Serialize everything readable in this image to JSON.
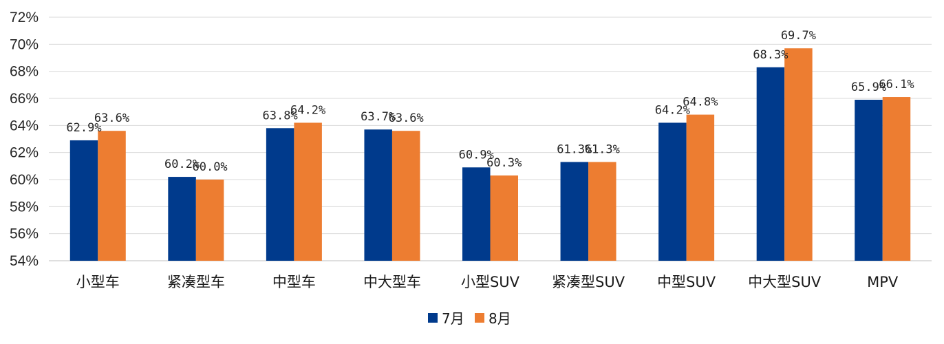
{
  "chart_data": {
    "type": "bar",
    "categories": [
      "小型车",
      "紧凑型车",
      "中型车",
      "中大型车",
      "小型SUV",
      "紧凑型SUV",
      "中型SUV",
      "中大型SUV",
      "MPV"
    ],
    "series": [
      {
        "name": "7月",
        "color": "#003a8c",
        "values": [
          62.9,
          60.2,
          63.8,
          63.7,
          60.9,
          61.3,
          64.2,
          68.3,
          65.9
        ],
        "labels": [
          "62.9%",
          "60.2%",
          "63.8%",
          "63.7%",
          "60.9%",
          "61.3%",
          "64.2%",
          "68.3%",
          "65.9%"
        ]
      },
      {
        "name": "8月",
        "color": "#ed7d31",
        "values": [
          63.6,
          60.0,
          64.2,
          63.6,
          60.3,
          61.3,
          64.8,
          69.7,
          66.1
        ],
        "labels": [
          "63.6%",
          "60.0%",
          "64.2%",
          "63.6%",
          "60.3%",
          "61.3%",
          "64.8%",
          "69.7%",
          "66.1%"
        ]
      }
    ],
    "ylim": [
      54,
      72
    ],
    "yticks": [
      54,
      56,
      58,
      60,
      62,
      64,
      66,
      68,
      70,
      72
    ],
    "ytick_labels": [
      "54%",
      "56%",
      "58%",
      "60%",
      "62%",
      "64%",
      "66%",
      "68%",
      "70%",
      "72%"
    ],
    "title": "",
    "xlabel": "",
    "ylabel": "",
    "grid": true,
    "legend_position": "bottom-center"
  }
}
